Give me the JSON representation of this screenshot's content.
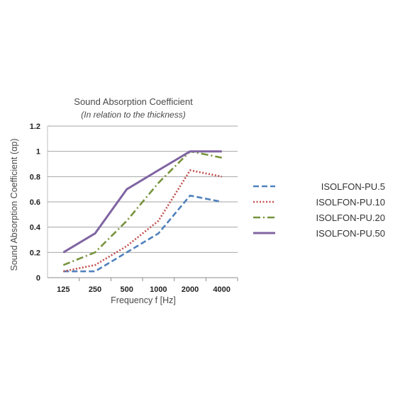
{
  "chart_data": {
    "type": "line",
    "title": "Sound Absorption Coefficient",
    "subtitle": "(In relation to the thickness)",
    "xlabel": "Frequency f [Hz]",
    "ylabel": "Sound Absorption Coefficient (αp)",
    "categories": [
      "125",
      "250",
      "500",
      "1000",
      "2000",
      "4000"
    ],
    "ylim": [
      0,
      1.2
    ],
    "yticks": [
      "0",
      "0.2",
      "0.4",
      "0.6",
      "0.8",
      "1",
      "1.2"
    ],
    "grid": true,
    "legend_position": "right",
    "series": [
      {
        "name": "ISOLFON-PU.5",
        "values": [
          0.05,
          0.05,
          0.2,
          0.35,
          0.65,
          0.6
        ],
        "color": "#4f81bd",
        "style": "dashed"
      },
      {
        "name": "ISOLFON-PU.10",
        "values": [
          0.05,
          0.1,
          0.25,
          0.45,
          0.85,
          0.8
        ],
        "color": "#c0504d",
        "style": "dotted"
      },
      {
        "name": "ISOLFON-PU.20",
        "values": [
          0.1,
          0.2,
          0.45,
          0.75,
          1.0,
          0.95
        ],
        "color": "#77933c",
        "style": "dash-dot"
      },
      {
        "name": "ISOLFON-PU.50",
        "values": [
          0.2,
          0.35,
          0.7,
          0.85,
          1.0,
          1.0
        ],
        "color": "#8064a2",
        "style": "solid"
      }
    ]
  }
}
